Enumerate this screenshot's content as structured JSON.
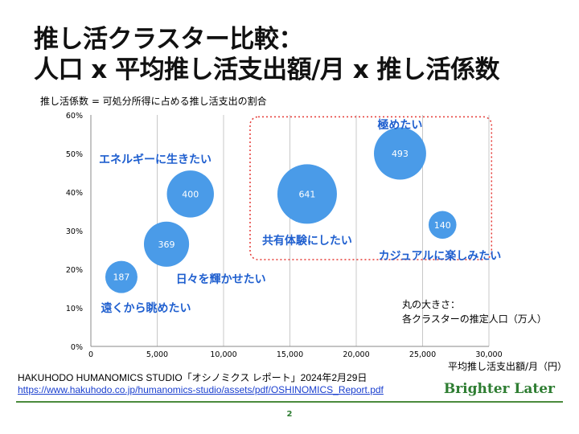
{
  "slide": {
    "title_line1": "推し活クラスター比較：",
    "title_line2": "人口 x 平均推し活支出額/月 x 推し活係数"
  },
  "chart_data": {
    "type": "bubble",
    "ylabel": "推し活係数 = 可処分所得に占める推し活支出の割合",
    "xlabel": "平均推し活支出額/月（円）",
    "xlim": [
      0,
      30000
    ],
    "ylim": [
      0,
      60
    ],
    "x_ticks": [
      "0",
      "5,000",
      "10,000",
      "15,000",
      "20,000",
      "25,000",
      "30,000"
    ],
    "y_ticks": [
      "0%",
      "10%",
      "20%",
      "30%",
      "40%",
      "50%",
      "60%"
    ],
    "grid": "vertical",
    "bubble_color": "#4a9be8",
    "points": [
      {
        "label": "遠くから眺めたい",
        "x": 2300,
        "y": 18,
        "size": 187
      },
      {
        "label": "日々を輝かせたい",
        "x": 5700,
        "y": 26.5,
        "size": 369
      },
      {
        "label": "エネルギーに生きたい",
        "x": 7500,
        "y": 39.5,
        "size": 400
      },
      {
        "label": "共有体験にしたい",
        "x": 16300,
        "y": 39.5,
        "size": 641
      },
      {
        "label": "極めたい",
        "x": 23300,
        "y": 50,
        "size": 493
      },
      {
        "label": "カジュアルに楽しみたい",
        "x": 26500,
        "y": 31.5,
        "size": 140
      }
    ],
    "label_color": "#1f5fcf",
    "highlight_color": "#e53935",
    "note_line1": "丸の大きさ：",
    "note_line2": "各クラスターの推定人口（万人）"
  },
  "footer": {
    "source": "HAKUHODO HUMANOMICS STUDIO「オシノミクス レポート」2024年2月29日",
    "link": "https://www.hakuhodo.co.jp/humanomics-studio/assets/pdf/OSHINOMICS_Report.pdf",
    "brand": "Brighter Later",
    "page": "2"
  }
}
